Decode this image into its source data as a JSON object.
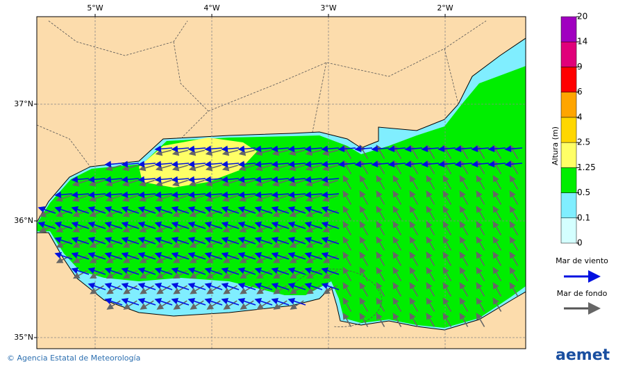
{
  "map": {
    "lon_ticks": [
      {
        "value": -5,
        "label": "5°W"
      },
      {
        "value": -4,
        "label": "4°W"
      },
      {
        "value": -3,
        "label": "3°W"
      },
      {
        "value": -2,
        "label": "2°W"
      }
    ],
    "lat_ticks": [
      {
        "value": 37,
        "label": "37°N"
      },
      {
        "value": 36,
        "label": "36°N"
      },
      {
        "value": 35,
        "label": "35°N"
      }
    ]
  },
  "colorbar": {
    "title": "Altura (m)",
    "levels": [
      0,
      0.1,
      0.5,
      1.25,
      2.5,
      4,
      6,
      9,
      14,
      20
    ],
    "colors": [
      "#d4ffff",
      "#80eeff",
      "#00ee00",
      "#ffff66",
      "#ffd700",
      "#ffa500",
      "#ff0000",
      "#e0007a",
      "#a000c0"
    ]
  },
  "legend": {
    "wind_sea": "Mar de viento",
    "swell": "Mar de fondo"
  },
  "footer": {
    "credit": "© Agencia Estatal de Meteorología",
    "logo": "aemet"
  }
}
